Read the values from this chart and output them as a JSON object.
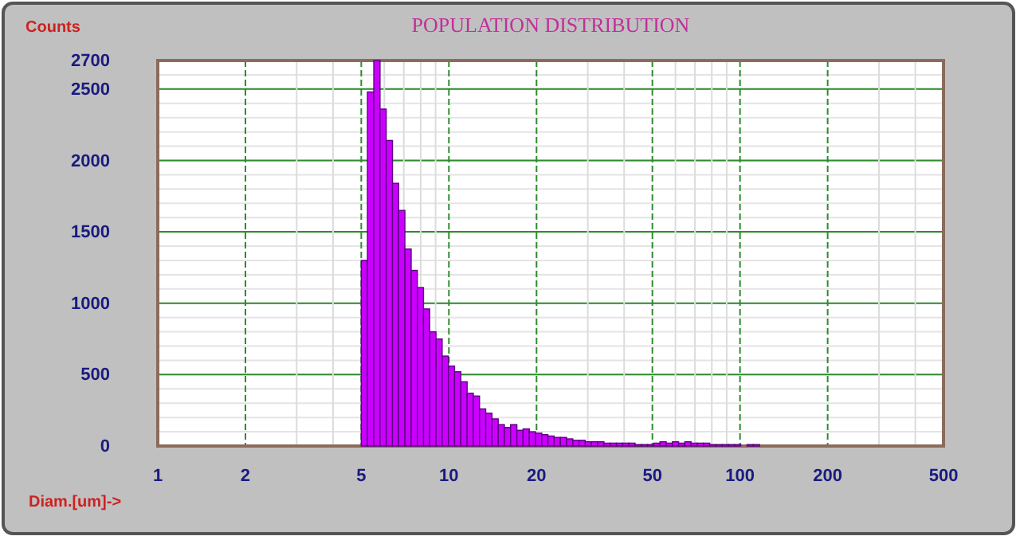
{
  "chart_data": {
    "type": "histogram",
    "title": "POPULATION DISTRIBUTION",
    "ylabel": "Counts",
    "xlabel": "Diam.[um]->",
    "color": "#cc00ff",
    "log": "x",
    "grid": true,
    "xlim": [
      1,
      500
    ],
    "xticks": [
      1,
      2,
      5,
      10,
      20,
      50,
      100,
      200,
      500
    ],
    "ylim": [
      0,
      2700
    ],
    "yticks": [
      0,
      500,
      1000,
      1500,
      2000,
      2500,
      2700
    ],
    "bins": [
      5.0,
      5.25,
      5.52,
      5.8,
      6.09,
      6.4,
      6.72,
      7.06,
      7.42,
      7.79,
      8.18,
      8.59,
      9.03,
      9.48,
      9.96,
      10.46,
      10.99,
      11.55,
      12.13,
      12.74,
      13.38,
      14.06,
      14.77,
      15.51,
      16.29,
      17.12,
      17.98,
      18.89,
      19.84,
      20.85,
      21.88,
      22.99,
      24.15,
      25.37,
      26.65,
      27.99,
      29.4,
      30.89,
      32.45,
      34.09,
      35.8,
      37.61,
      39.51,
      41.5,
      43.6,
      45.8,
      48.11,
      50.54,
      53.1,
      55.78,
      58.56,
      61.52,
      64.63,
      67.89,
      71.31,
      74.92,
      78.7,
      82.67,
      86.85,
      91.24,
      95.8,
      100.6,
      105.7,
      111.1,
      116.7
    ],
    "values": [
      1300,
      2480,
      2700,
      2360,
      2140,
      1840,
      1650,
      1380,
      1230,
      1110,
      960,
      800,
      750,
      630,
      560,
      520,
      450,
      370,
      350,
      260,
      230,
      190,
      150,
      130,
      150,
      110,
      120,
      100,
      90,
      80,
      70,
      60,
      60,
      50,
      40,
      40,
      30,
      30,
      30,
      20,
      20,
      20,
      20,
      20,
      10,
      10,
      10,
      20,
      30,
      20,
      30,
      20,
      30,
      20,
      20,
      20,
      10,
      10,
      10,
      10,
      10,
      0,
      10,
      10
    ]
  }
}
